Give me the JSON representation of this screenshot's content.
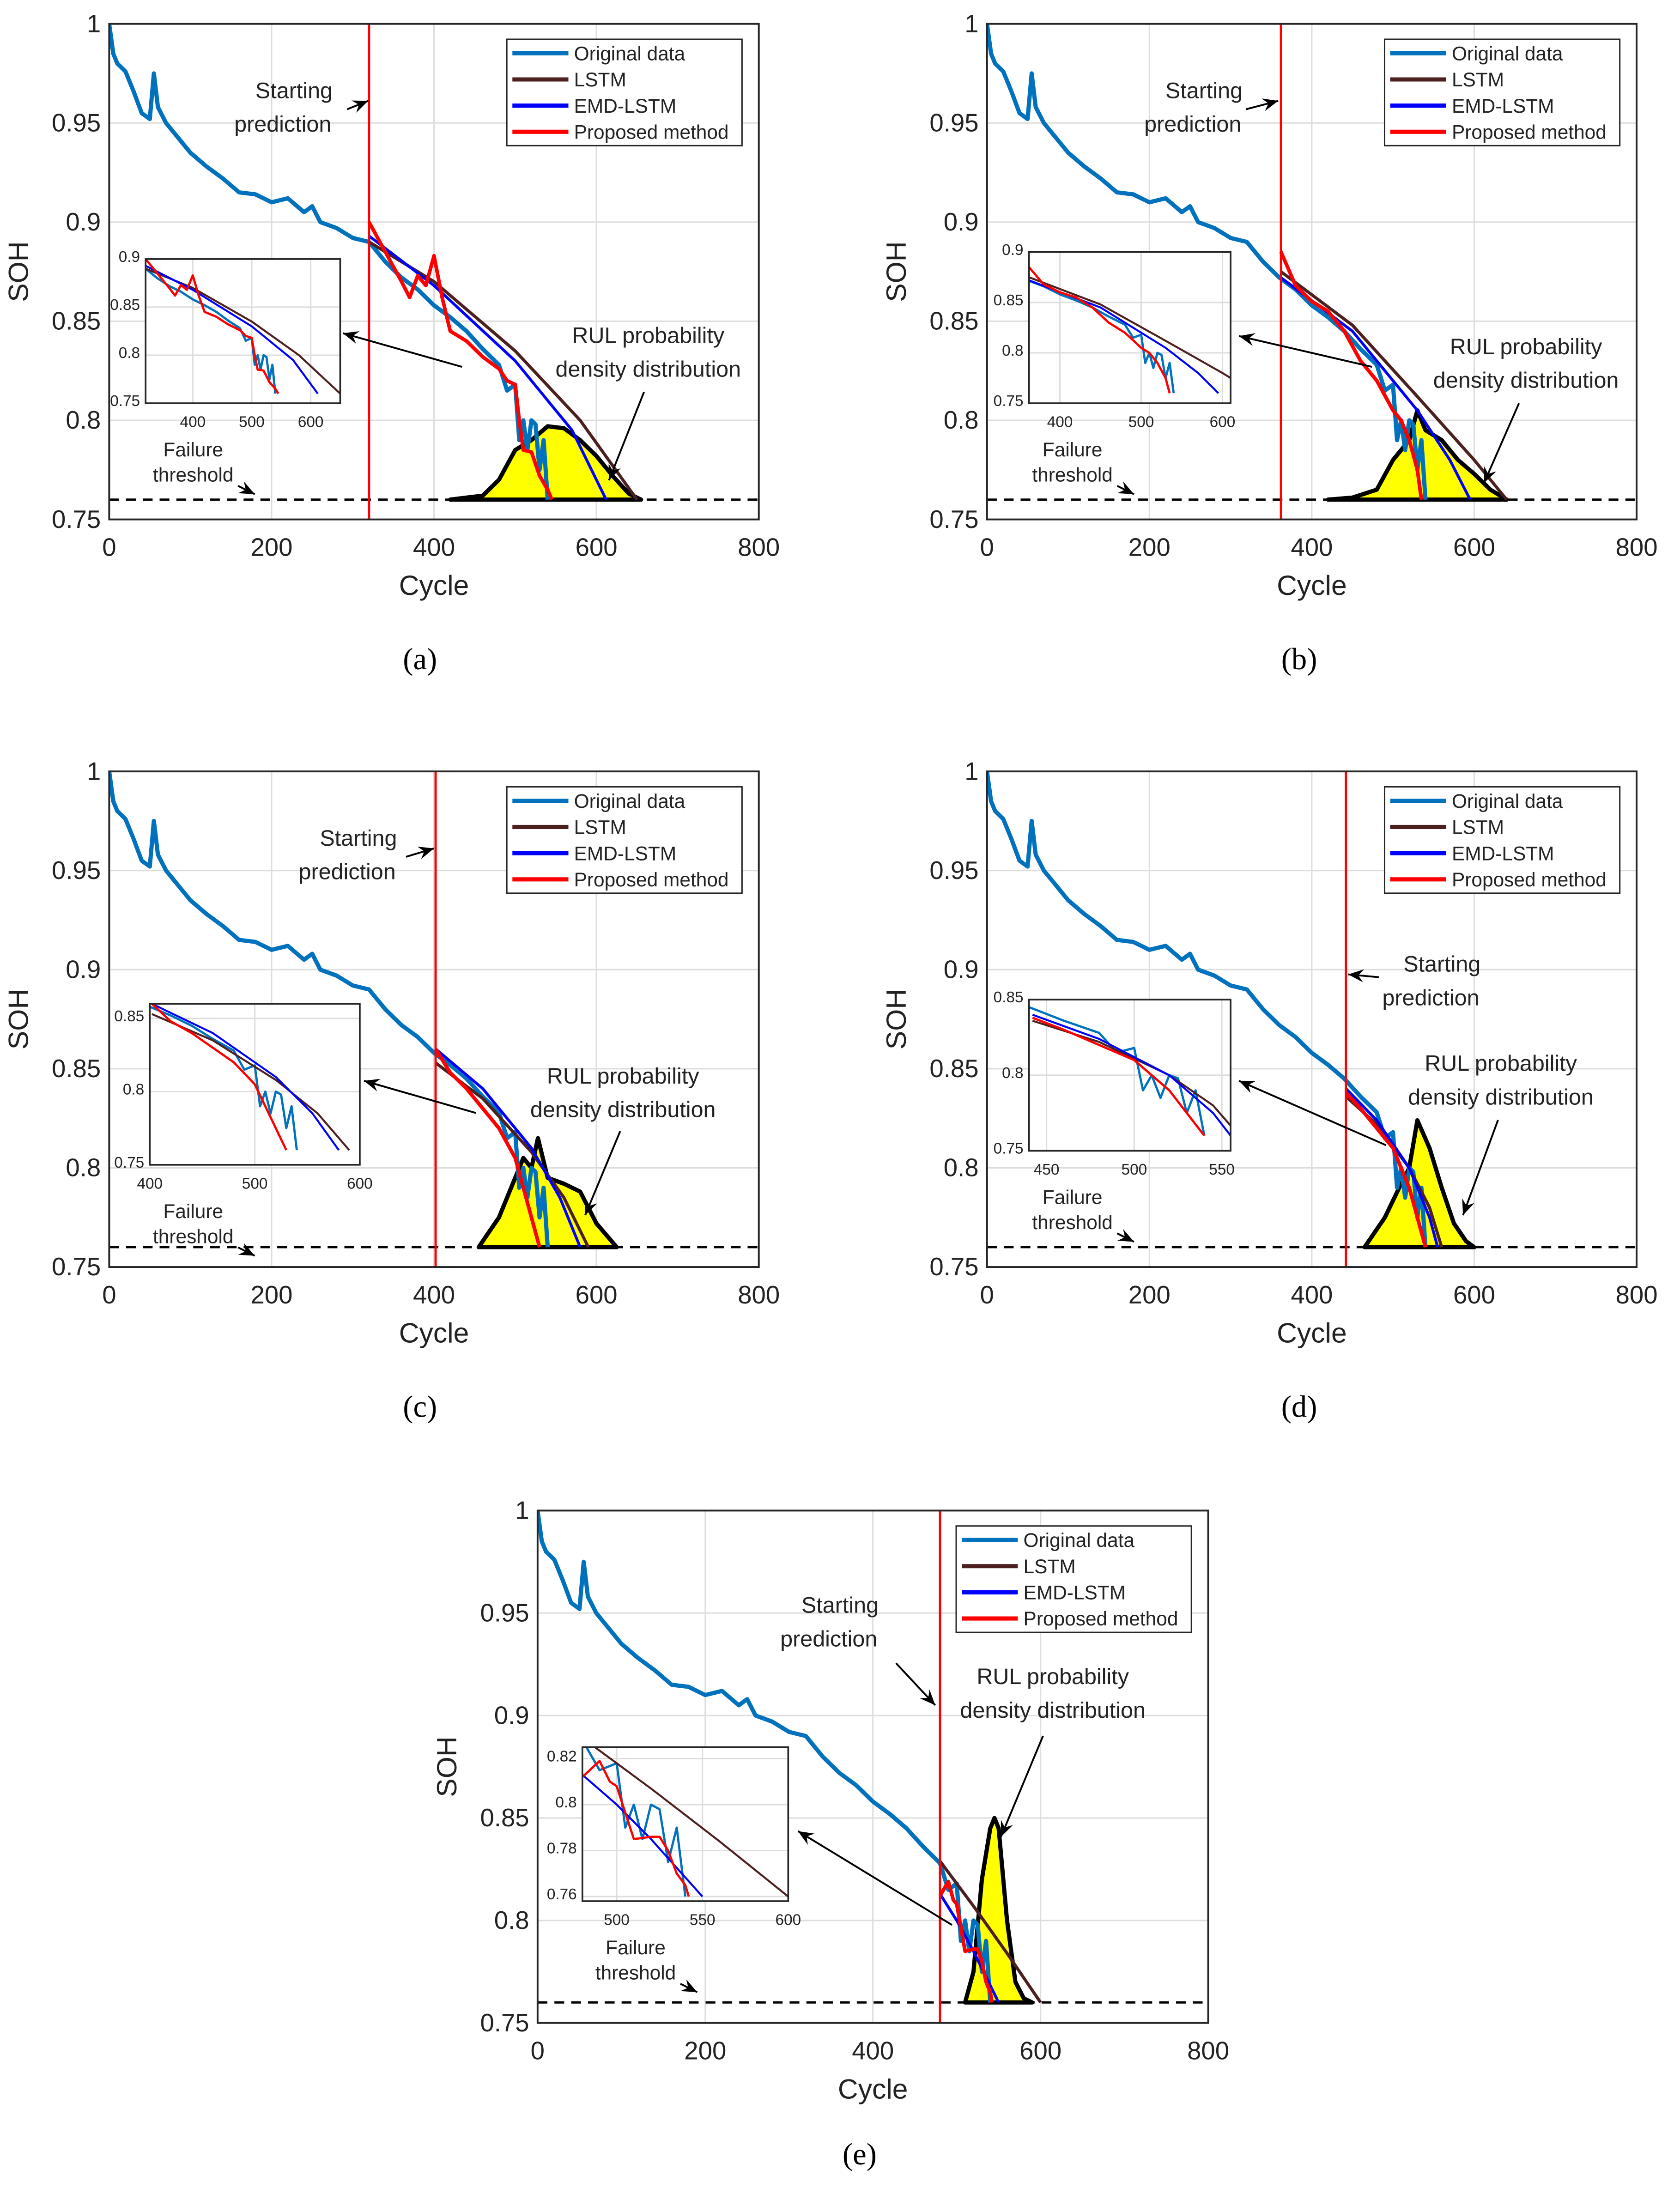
{
  "colors": {
    "original": "#0072BD",
    "lstm": "#4D2020",
    "emd_lstm": "#0000FF",
    "proposed": "#FF0000",
    "start_line": "#FF0000",
    "pdf_fill": "#FFFF00",
    "pdf_edge": "#000000",
    "threshold": "#000000"
  },
  "labels": {
    "xlabel": "Cycle",
    "ylabel": "SOH",
    "legend": [
      "Original data",
      "LSTM",
      "EMD-LSTM",
      "Proposed method"
    ],
    "start": [
      "Starting",
      "prediction"
    ],
    "rul": [
      "RUL probability",
      "density distribution"
    ],
    "failure": [
      "Failure",
      "threshold"
    ]
  },
  "chart_data": {
    "type": "line",
    "xlim": [
      0,
      800
    ],
    "ylim": [
      0.75,
      1.0
    ],
    "xticks": [
      "0",
      "200",
      "400",
      "600",
      "800"
    ],
    "yticks": [
      "0.75",
      "0.8",
      "0.85",
      "0.9",
      "0.95",
      "1"
    ],
    "grid": true,
    "legend_position": "top-right",
    "failure_threshold": 0.76,
    "original": {
      "x": [
        0,
        5,
        10,
        20,
        30,
        40,
        50,
        55,
        60,
        70,
        80,
        100,
        120,
        140,
        160,
        180,
        200,
        220,
        240,
        250,
        260,
        280,
        300,
        320,
        340,
        360,
        380,
        400,
        420,
        440,
        460,
        480,
        490,
        500,
        505,
        510,
        515,
        520,
        525,
        530,
        535,
        540
      ],
      "y": [
        1.0,
        0.985,
        0.98,
        0.976,
        0.966,
        0.955,
        0.952,
        0.975,
        0.958,
        0.95,
        0.945,
        0.935,
        0.928,
        0.922,
        0.915,
        0.914,
        0.91,
        0.912,
        0.905,
        0.908,
        0.9,
        0.897,
        0.892,
        0.89,
        0.88,
        0.872,
        0.866,
        0.858,
        0.852,
        0.845,
        0.836,
        0.828,
        0.815,
        0.818,
        0.79,
        0.8,
        0.785,
        0.8,
        0.798,
        0.775,
        0.79,
        0.76
      ]
    },
    "panels": [
      {
        "caption": "(a)",
        "start": 320,
        "lstm": {
          "x": [
            320,
            400,
            500,
            580,
            650
          ],
          "y": [
            0.89,
            0.87,
            0.835,
            0.8,
            0.76
          ]
        },
        "emd_lstm": {
          "x": [
            320,
            400,
            500,
            570,
            612
          ],
          "y": [
            0.893,
            0.868,
            0.83,
            0.795,
            0.76
          ]
        },
        "proposed": {
          "x": [
            320,
            340,
            360,
            370,
            380,
            390,
            400,
            410,
            420,
            440,
            460,
            480,
            490,
            500,
            505,
            510,
            520,
            530,
            540,
            545
          ],
          "y": [
            0.9,
            0.885,
            0.87,
            0.862,
            0.873,
            0.868,
            0.883,
            0.862,
            0.845,
            0.84,
            0.832,
            0.826,
            0.82,
            0.818,
            0.8,
            0.785,
            0.784,
            0.772,
            0.765,
            0.76
          ]
        },
        "pdf": {
          "x": [
            420,
            460,
            480,
            500,
            520,
            540,
            560,
            580,
            600,
            620,
            640,
            655
          ],
          "y": [
            0.76,
            0.762,
            0.77,
            0.785,
            0.79,
            0.797,
            0.796,
            0.79,
            0.782,
            0.772,
            0.763,
            0.76
          ]
        },
        "inset": {
          "xlim": [
            320,
            650
          ],
          "ylim": [
            0.75,
            0.9
          ],
          "xticks": [
            "400",
            "500",
            "600"
          ],
          "yticks": [
            "0.75",
            "0.8",
            "0.85",
            "0.9"
          ]
        }
      },
      {
        "caption": "(b)",
        "start": 362,
        "lstm": {
          "x": [
            362,
            450,
            530,
            600,
            640
          ],
          "y": [
            0.875,
            0.848,
            0.812,
            0.78,
            0.76
          ]
        },
        "emd_lstm": {
          "x": [
            362,
            450,
            530,
            570,
            595
          ],
          "y": [
            0.872,
            0.845,
            0.805,
            0.78,
            0.76
          ]
        },
        "proposed": {
          "x": [
            362,
            380,
            400,
            420,
            440,
            460,
            480,
            500,
            510,
            520,
            530,
            535
          ],
          "y": [
            0.885,
            0.868,
            0.86,
            0.855,
            0.845,
            0.83,
            0.82,
            0.805,
            0.8,
            0.79,
            0.775,
            0.76
          ]
        },
        "pdf": {
          "x": [
            420,
            450,
            480,
            500,
            520,
            530,
            540,
            560,
            580,
            600,
            620,
            640
          ],
          "y": [
            0.76,
            0.761,
            0.765,
            0.78,
            0.79,
            0.805,
            0.795,
            0.79,
            0.78,
            0.773,
            0.765,
            0.76
          ]
        },
        "inset": {
          "xlim": [
            362,
            610
          ],
          "ylim": [
            0.75,
            0.9
          ],
          "xticks": [
            "400",
            "500",
            "600"
          ],
          "yticks": [
            "0.75",
            "0.8",
            "0.85",
            "0.9"
          ]
        }
      },
      {
        "caption": "(c)",
        "start": 402,
        "lstm": {
          "x": [
            402,
            460,
            520,
            560,
            590
          ],
          "y": [
            0.853,
            0.835,
            0.808,
            0.785,
            0.76
          ]
        },
        "emd_lstm": {
          "x": [
            402,
            460,
            520,
            555,
            580
          ],
          "y": [
            0.86,
            0.84,
            0.81,
            0.785,
            0.76
          ]
        },
        "proposed": {
          "x": [
            402,
            420,
            440,
            460,
            480,
            500,
            510,
            520,
            530
          ],
          "y": [
            0.86,
            0.848,
            0.84,
            0.83,
            0.82,
            0.805,
            0.79,
            0.775,
            0.76
          ]
        },
        "pdf": {
          "x": [
            455,
            480,
            500,
            510,
            520,
            528,
            540,
            560,
            580,
            600,
            625
          ],
          "y": [
            0.76,
            0.775,
            0.795,
            0.805,
            0.8,
            0.815,
            0.795,
            0.792,
            0.788,
            0.772,
            0.76
          ]
        },
        "inset": {
          "xlim": [
            400,
            600
          ],
          "ylim": [
            0.75,
            0.86
          ],
          "xticks": [
            "400",
            "500",
            "600"
          ],
          "yticks": [
            "0.75",
            "0.8",
            "0.85"
          ]
        }
      },
      {
        "caption": "(d)",
        "start": 442,
        "lstm": {
          "x": [
            442,
            480,
            520,
            545,
            560
          ],
          "y": [
            0.836,
            0.822,
            0.8,
            0.78,
            0.76
          ]
        },
        "emd_lstm": {
          "x": [
            442,
            480,
            520,
            545,
            555
          ],
          "y": [
            0.84,
            0.824,
            0.8,
            0.775,
            0.76
          ]
        },
        "proposed": {
          "x": [
            442,
            460,
            480,
            500,
            510,
            520,
            530,
            540
          ],
          "y": [
            0.838,
            0.83,
            0.82,
            0.81,
            0.8,
            0.79,
            0.775,
            0.76
          ]
        },
        "pdf": {
          "x": [
            465,
            490,
            510,
            520,
            530,
            545,
            560,
            575,
            590,
            600
          ],
          "y": [
            0.76,
            0.775,
            0.792,
            0.8,
            0.824,
            0.81,
            0.79,
            0.772,
            0.763,
            0.76
          ]
        },
        "inset": {
          "xlim": [
            440,
            555
          ],
          "ylim": [
            0.75,
            0.85
          ],
          "xticks": [
            "450",
            "500",
            "550"
          ],
          "yticks": [
            "0.75",
            "0.8",
            "0.85"
          ]
        }
      },
      {
        "caption": "(e)",
        "start": 480,
        "lstm": {
          "x": [
            480,
            520,
            560,
            600
          ],
          "y": [
            0.829,
            0.807,
            0.784,
            0.76
          ]
        },
        "emd_lstm": {
          "x": [
            480,
            500,
            520,
            550
          ],
          "y": [
            0.813,
            0.8,
            0.785,
            0.76
          ]
        },
        "proposed": {
          "x": [
            480,
            490,
            496,
            500,
            510,
            520,
            525,
            530,
            535,
            540,
            542
          ],
          "y": [
            0.812,
            0.819,
            0.81,
            0.808,
            0.785,
            0.786,
            0.786,
            0.78,
            0.77,
            0.765,
            0.76
          ]
        },
        "pdf": {
          "x": [
            510,
            520,
            530,
            540,
            545,
            550,
            560,
            570,
            580,
            590
          ],
          "y": [
            0.76,
            0.775,
            0.82,
            0.845,
            0.85,
            0.845,
            0.8,
            0.77,
            0.762,
            0.76
          ]
        },
        "inset": {
          "xlim": [
            480,
            600
          ],
          "ylim": [
            0.758,
            0.825
          ],
          "xticks": [
            "500",
            "550",
            "600"
          ],
          "yticks": [
            "0.76",
            "0.78",
            "0.8",
            "0.82"
          ]
        }
      }
    ]
  }
}
